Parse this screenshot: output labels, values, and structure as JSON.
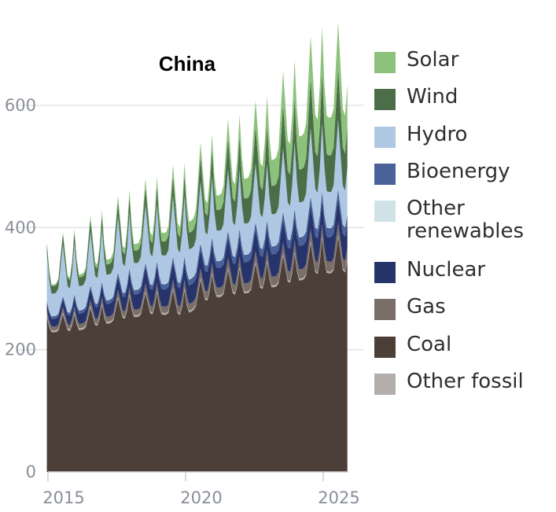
{
  "chart_data": {
    "type": "area",
    "stacked": true,
    "title": "China",
    "xlabel": "",
    "ylabel": "",
    "xlim": [
      2014.92,
      2025.92
    ],
    "ylim": [
      0,
      750
    ],
    "y_ticks": [
      {
        "value": 0,
        "label": "0"
      },
      {
        "value": 200,
        "label": "200"
      },
      {
        "value": 400,
        "label": "400"
      },
      {
        "value": 600,
        "label": "600"
      }
    ],
    "x_ticks": [
      {
        "value": 2015,
        "label": "2015"
      },
      {
        "value": 2020,
        "label": "2020"
      },
      {
        "value": 2025,
        "label": "2025"
      }
    ],
    "grid": "horizontal",
    "legend_placement": "right",
    "x_years": [
      2015,
      2016,
      2017,
      2018,
      2019,
      2020,
      2021,
      2022,
      2023,
      2024,
      2025
    ],
    "series": [
      {
        "name": "Coal",
        "color": "#4b3f37",
        "peak": [
          255,
          260,
          275,
          290,
          295,
          300,
          325,
          335,
          345,
          360,
          385
        ],
        "trough": [
          228,
          230,
          240,
          252,
          258,
          255,
          285,
          290,
          300,
          310,
          325
        ]
      },
      {
        "name": "Other fossil",
        "color": "#b3adab",
        "peak": [
          3,
          3,
          3,
          3,
          3,
          3,
          3,
          3,
          3,
          3,
          3
        ],
        "trough": [
          3,
          3,
          3,
          3,
          3,
          3,
          3,
          3,
          3,
          3,
          3
        ]
      },
      {
        "name": "Gas",
        "color": "#7a6e69",
        "peak": [
          8,
          9,
          10,
          12,
          13,
          14,
          16,
          17,
          18,
          19,
          20
        ],
        "trough": [
          6,
          7,
          8,
          9,
          10,
          11,
          12,
          13,
          14,
          15,
          16
        ]
      },
      {
        "name": "Nuclear",
        "color": "#27346c",
        "peak": [
          12,
          16,
          20,
          24,
          28,
          30,
          32,
          34,
          36,
          38,
          40
        ],
        "trough": [
          12,
          16,
          20,
          24,
          28,
          30,
          32,
          34,
          36,
          38,
          40
        ]
      },
      {
        "name": "Bioenergy",
        "color": "#4a6199",
        "peak": [
          4,
          5,
          6,
          7,
          8,
          9,
          11,
          12,
          13,
          14,
          15
        ],
        "trough": [
          4,
          5,
          6,
          7,
          8,
          9,
          11,
          12,
          13,
          14,
          15
        ]
      },
      {
        "name": "Other renewables",
        "color": "#cfe3e6",
        "peak": [
          1,
          1,
          1,
          1,
          1,
          1,
          1,
          1,
          1,
          1,
          1
        ],
        "trough": [
          1,
          1,
          1,
          1,
          1,
          1,
          1,
          1,
          1,
          1,
          1
        ]
      },
      {
        "name": "Hydro",
        "color": "#aec7e3",
        "peak": [
          80,
          85,
          88,
          92,
          95,
          100,
          100,
          98,
          92,
          110,
          112
        ],
        "trough": [
          35,
          38,
          40,
          42,
          45,
          48,
          48,
          50,
          50,
          55,
          58
        ]
      },
      {
        "name": "Wind",
        "color": "#4b6e49",
        "peak": [
          15,
          18,
          22,
          26,
          30,
          35,
          45,
          55,
          65,
          75,
          85
        ],
        "trough": [
          12,
          14,
          16,
          20,
          22,
          26,
          32,
          40,
          45,
          52,
          60
        ]
      },
      {
        "name": "Solar",
        "color": "#8dc27c",
        "peak": [
          2,
          5,
          8,
          12,
          16,
          20,
          26,
          36,
          48,
          62,
          75
        ],
        "trough": [
          2,
          4,
          7,
          10,
          13,
          17,
          22,
          30,
          40,
          52,
          62
        ]
      }
    ]
  },
  "legend": [
    {
      "label": "Solar",
      "color": "#8dc27c"
    },
    {
      "label": "Wind",
      "color": "#4b6e49"
    },
    {
      "label": "Hydro",
      "color": "#aec7e3"
    },
    {
      "label": "Bioenergy",
      "color": "#4a6199"
    },
    {
      "label": "Other\nrenewables",
      "color": "#cfe3e6"
    },
    {
      "label": "Nuclear",
      "color": "#27346c"
    },
    {
      "label": "Gas",
      "color": "#7a6e69"
    },
    {
      "label": "Coal",
      "color": "#4b3f37"
    },
    {
      "label": "Other fossil",
      "color": "#b3adab"
    }
  ]
}
